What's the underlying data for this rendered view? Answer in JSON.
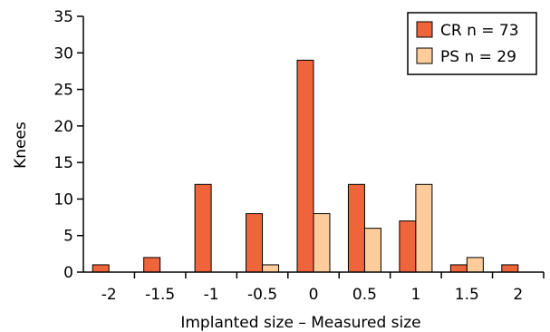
{
  "chart_data": {
    "type": "bar",
    "title": "",
    "xlabel": "Implanted size – Measured size",
    "ylabel": "Knees",
    "categories": [
      "-2",
      "-1.5",
      "-1",
      "-0.5",
      "0",
      "0.5",
      "1",
      "1.5",
      "2"
    ],
    "ylim": [
      0,
      35
    ],
    "yticks": [
      "0",
      "5",
      "10",
      "15",
      "20",
      "25",
      "30",
      "35"
    ],
    "grid": false,
    "legend_position": "top-right",
    "series": [
      {
        "name": "CR n = 73",
        "color": "#f0643c",
        "values": [
          1,
          2,
          12,
          8,
          29,
          12,
          7,
          1,
          1
        ]
      },
      {
        "name": "PS n = 29",
        "color": "#fdcc9a",
        "values": [
          0,
          0,
          0,
          1,
          8,
          6,
          12,
          2,
          0
        ]
      }
    ]
  }
}
